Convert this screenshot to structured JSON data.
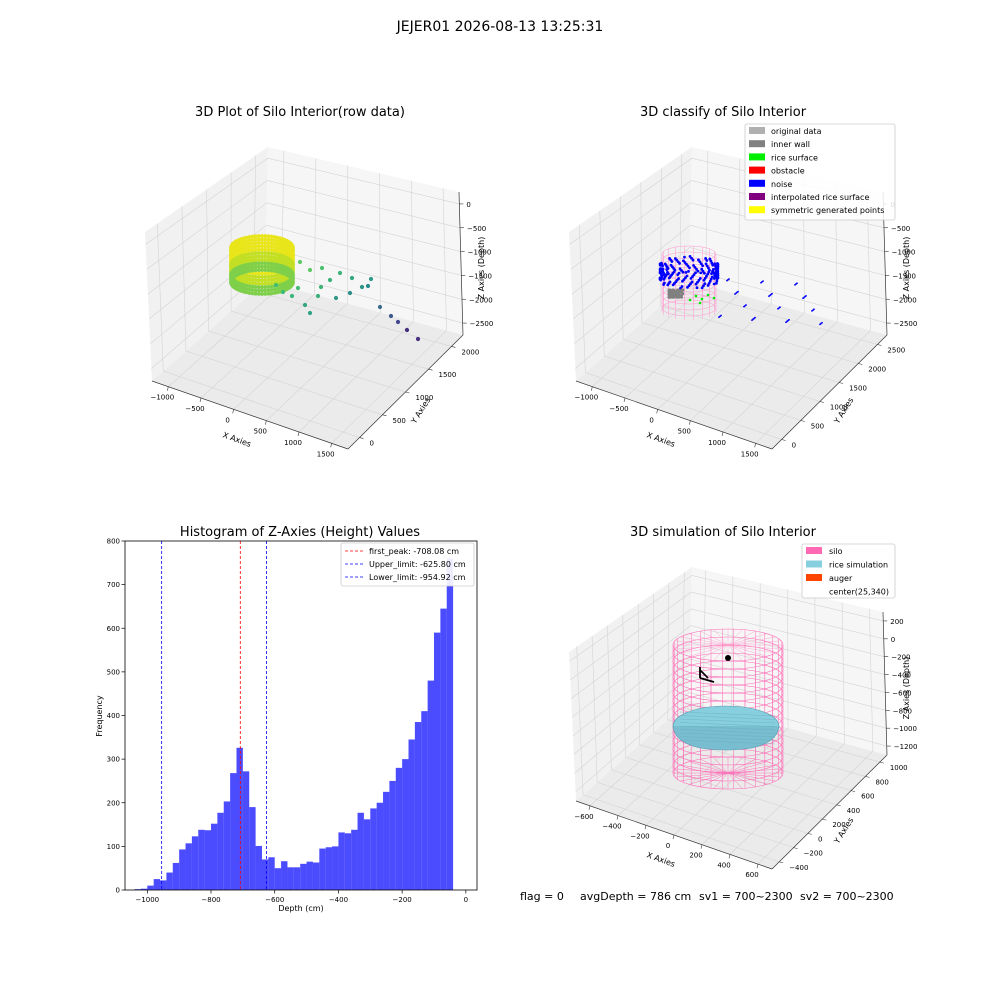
{
  "suptitle": "JEJER01 2026-08-13 13:25:31",
  "footer": {
    "flag": "flag = 0",
    "avg": "avgDepth = 786 cm",
    "sv1": "sv1 = 700~2300",
    "sv2": "sv2 = 700~2300"
  },
  "chart_data": [
    {
      "type": "scatter",
      "title": "3D Plot of Silo Interior(row data)",
      "xlabel": "X Axies",
      "ylabel": "Y Axies",
      "zlabel": "Z Axies (Depth)",
      "xticks": [
        "−1000",
        "−500",
        "0",
        "500",
        "1000",
        "1500"
      ],
      "yticks": [
        "0",
        "500",
        "1000",
        "1500",
        "2000"
      ],
      "zticks": [
        "0",
        "−500",
        "−1000",
        "−1500",
        "−2000",
        "−2500"
      ],
      "colormap": "viridis (depth)",
      "grid": true
    },
    {
      "type": "scatter",
      "title": "3D classify of Silo Interior",
      "xlabel": "X Axies",
      "ylabel": "Y Axies",
      "zlabel": "Z Axies (Depth)",
      "xticks": [
        "−1000",
        "−500",
        "0",
        "500",
        "1000",
        "1500"
      ],
      "yticks": [
        "0",
        "500",
        "1000",
        "1500",
        "2000",
        "2500"
      ],
      "zticks": [
        "0",
        "−500",
        "−1000",
        "−1500",
        "−2000",
        "−2500"
      ],
      "legend_position": "top-right",
      "legend": [
        {
          "label": "original data",
          "color": "#b0b0b0"
        },
        {
          "label": "inner wall",
          "color": "#808080"
        },
        {
          "label": "rice surface",
          "color": "#00ee00"
        },
        {
          "label": "obstacle",
          "color": "#ff0000"
        },
        {
          "label": "noise",
          "color": "#0000ff"
        },
        {
          "label": "interpolated rice surface",
          "color": "#800080"
        },
        {
          "label": "symmetric generated points",
          "color": "#ffff00"
        }
      ],
      "grid": true
    },
    {
      "type": "bar",
      "title": "Histogram of Z-Axies (Height) Values",
      "xlabel": "Depth (cm)",
      "ylabel": "Frequency",
      "xlim": [
        -1070,
        35
      ],
      "ylim": [
        0,
        800
      ],
      "xticks": [
        -1000,
        -800,
        -600,
        -400,
        -200,
        0
      ],
      "xtick_labels": [
        "−1000",
        "−800",
        "−600",
        "−400",
        "−200",
        "0"
      ],
      "yticks": [
        0,
        100,
        200,
        300,
        400,
        500,
        600,
        700,
        800
      ],
      "bin_start": -1040,
      "bin_width": 20,
      "values": [
        2,
        3,
        10,
        25,
        22,
        40,
        62,
        93,
        107,
        123,
        138,
        137,
        152,
        177,
        203,
        268,
        326,
        272,
        190,
        101,
        70,
        75,
        50,
        66,
        52,
        52,
        60,
        65,
        63,
        95,
        98,
        100,
        132,
        130,
        138,
        177,
        162,
        187,
        200,
        225,
        250,
        280,
        300,
        345,
        385,
        410,
        480,
        590,
        645,
        760
      ],
      "bar_color": "#0000ff",
      "vlines": [
        {
          "label": "first_peak: -708.08 cm",
          "x": -708.08,
          "color": "#ff0000"
        },
        {
          "label": "Upper_limit: -625.80 cm",
          "x": -625.8,
          "color": "#0000ff"
        },
        {
          "label": "Lower_limit: -954.92 cm",
          "x": -954.92,
          "color": "#0000ff"
        }
      ],
      "legend_position": "top-right"
    },
    {
      "type": "scatter",
      "title": "3D simulation of Silo Interior",
      "xlabel": "X Axies",
      "ylabel": "Y Axies",
      "zlabel": "Z Axies (Depth)",
      "xticks": [
        "−600",
        "−400",
        "−200",
        "0",
        "200",
        "400",
        "600"
      ],
      "yticks": [
        "−400",
        "−200",
        "0",
        "200",
        "400",
        "600",
        "800",
        "1000"
      ],
      "zticks": [
        "200",
        "0",
        "−200",
        "−400",
        "−600",
        "−800",
        "−1000",
        "−1200"
      ],
      "legend_position": "top-right",
      "legend": [
        {
          "label": "silo",
          "color": "#ff69b4"
        },
        {
          "label": "rice simulation",
          "color": "#87cedf"
        },
        {
          "label": "auger",
          "color": "#ff4500"
        },
        {
          "label": "center(25,340)",
          "color": ""
        }
      ],
      "grid": true
    }
  ]
}
